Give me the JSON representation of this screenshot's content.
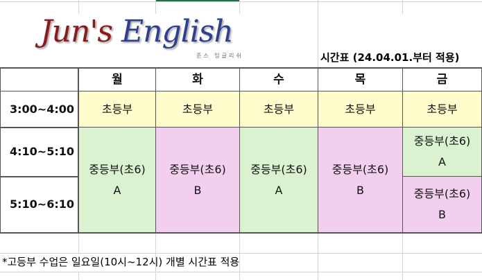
{
  "logo": {
    "text_part1": "Jun's",
    "text_part2": "English",
    "subtitle": "준스 잉글리쉬"
  },
  "title": "시간표 (24.04.01.부터 적용)",
  "days": [
    "월",
    "화",
    "수",
    "목",
    "금"
  ],
  "times": [
    "3:00~4:00",
    "4:10~5:10",
    "5:10~6:10"
  ],
  "row1": [
    "초등부",
    "초등부",
    "초등부",
    "초등부",
    "초등부"
  ],
  "middle": [
    {
      "name": "중등부(초6)",
      "group": "A"
    },
    {
      "name": "중등부(초6)",
      "group": "B"
    },
    {
      "name": "중등부(초6)",
      "group": "A"
    },
    {
      "name": "중등부(초6)",
      "group": "B"
    }
  ],
  "friday": [
    {
      "name": "중등부(초6)",
      "group": "A"
    },
    {
      "name": "중등부(초6)",
      "group": "B"
    }
  ],
  "note": "*고등부 수업은  일요일(10시~12시) 개별 시간표 적용",
  "colors": {
    "elementary": "#fffdcc",
    "group_a": "#daf2d0",
    "group_b": "#f2cfee",
    "selected_column": "#1e7145"
  }
}
